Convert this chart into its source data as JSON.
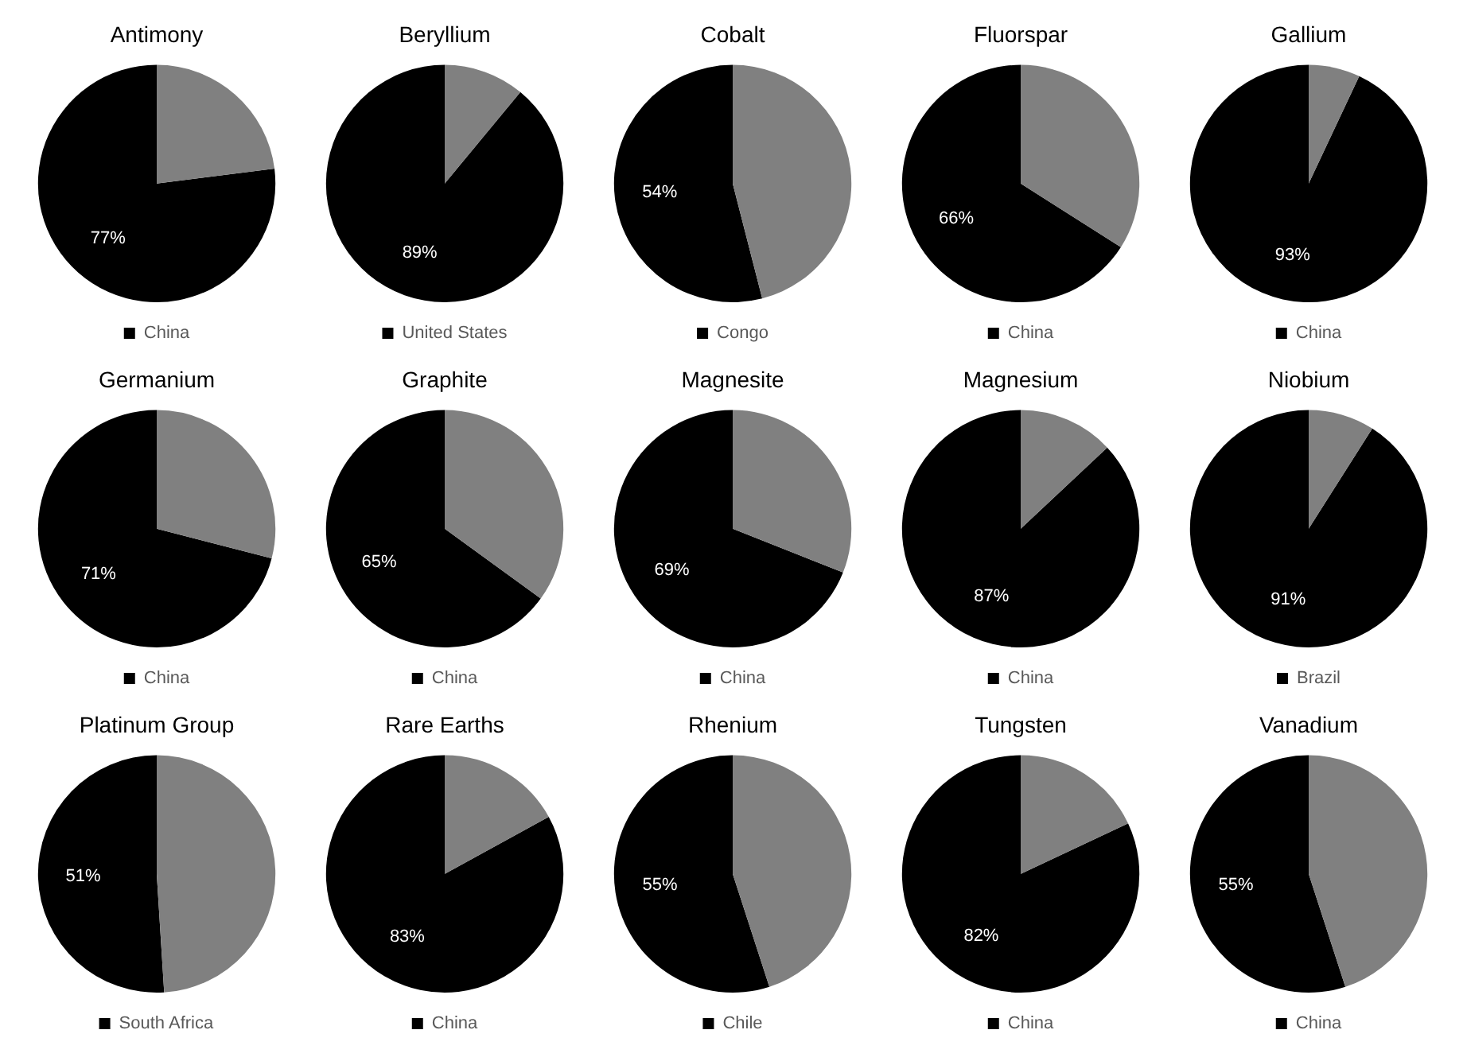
{
  "chart_data": [
    {
      "type": "pie",
      "title": "Antimony",
      "categories": [
        "China",
        null
      ],
      "values": [
        77,
        23
      ],
      "value_labels": [
        "77%",
        null
      ],
      "colors": [
        "#000000",
        "#808080"
      ],
      "legend": "bottom"
    },
    {
      "type": "pie",
      "title": "Beryllium",
      "categories": [
        "United States",
        null
      ],
      "values": [
        89,
        11
      ],
      "value_labels": [
        "89%",
        null
      ],
      "colors": [
        "#000000",
        "#808080"
      ],
      "legend": "bottom"
    },
    {
      "type": "pie",
      "title": "Cobalt",
      "categories": [
        "Congo",
        null
      ],
      "values": [
        54,
        46
      ],
      "value_labels": [
        "54%",
        null
      ],
      "colors": [
        "#000000",
        "#808080"
      ],
      "legend": "bottom"
    },
    {
      "type": "pie",
      "title": "Fluorspar",
      "categories": [
        "China",
        null
      ],
      "values": [
        66,
        34
      ],
      "value_labels": [
        "66%",
        null
      ],
      "colors": [
        "#000000",
        "#808080"
      ],
      "legend": "bottom"
    },
    {
      "type": "pie",
      "title": "Gallium",
      "categories": [
        "China",
        null
      ],
      "values": [
        93,
        7
      ],
      "value_labels": [
        "93%",
        null
      ],
      "colors": [
        "#000000",
        "#808080"
      ],
      "legend": "bottom"
    },
    {
      "type": "pie",
      "title": "Germanium",
      "categories": [
        "China",
        null
      ],
      "values": [
        71,
        29
      ],
      "value_labels": [
        "71%",
        null
      ],
      "colors": [
        "#000000",
        "#808080"
      ],
      "legend": "bottom"
    },
    {
      "type": "pie",
      "title": "Graphite",
      "categories": [
        "China",
        null
      ],
      "values": [
        65,
        35
      ],
      "value_labels": [
        "65%",
        null
      ],
      "colors": [
        "#000000",
        "#808080"
      ],
      "legend": "bottom"
    },
    {
      "type": "pie",
      "title": "Magnesite",
      "categories": [
        "China",
        null
      ],
      "values": [
        69,
        31
      ],
      "value_labels": [
        "69%",
        null
      ],
      "colors": [
        "#000000",
        "#808080"
      ],
      "legend": "bottom"
    },
    {
      "type": "pie",
      "title": "Magnesium",
      "categories": [
        "China",
        null
      ],
      "values": [
        87,
        13
      ],
      "value_labels": [
        "87%",
        null
      ],
      "colors": [
        "#000000",
        "#808080"
      ],
      "legend": "bottom"
    },
    {
      "type": "pie",
      "title": "Niobium",
      "categories": [
        "Brazil",
        null
      ],
      "values": [
        91,
        9
      ],
      "value_labels": [
        "91%",
        null
      ],
      "colors": [
        "#000000",
        "#808080"
      ],
      "legend": "bottom"
    },
    {
      "type": "pie",
      "title": "Platinum Group",
      "categories": [
        "South Africa",
        null
      ],
      "values": [
        51,
        49
      ],
      "value_labels": [
        "51%",
        null
      ],
      "colors": [
        "#000000",
        "#808080"
      ],
      "legend": "bottom"
    },
    {
      "type": "pie",
      "title": "Rare Earths",
      "categories": [
        "China",
        null
      ],
      "values": [
        83,
        17
      ],
      "value_labels": [
        "83%",
        null
      ],
      "colors": [
        "#000000",
        "#808080"
      ],
      "legend": "bottom"
    },
    {
      "type": "pie",
      "title": "Rhenium",
      "categories": [
        "Chile",
        null
      ],
      "values": [
        55,
        45
      ],
      "value_labels": [
        "55%",
        null
      ],
      "colors": [
        "#000000",
        "#808080"
      ],
      "legend": "bottom"
    },
    {
      "type": "pie",
      "title": "Tungsten",
      "categories": [
        "China",
        null
      ],
      "values": [
        82,
        18
      ],
      "value_labels": [
        "82%",
        null
      ],
      "colors": [
        "#000000",
        "#808080"
      ],
      "legend": "bottom"
    },
    {
      "type": "pie",
      "title": "Vanadium",
      "categories": [
        "China",
        null
      ],
      "values": [
        55,
        45
      ],
      "value_labels": [
        "55%",
        null
      ],
      "colors": [
        "#000000",
        "#808080"
      ],
      "legend": "bottom"
    }
  ]
}
